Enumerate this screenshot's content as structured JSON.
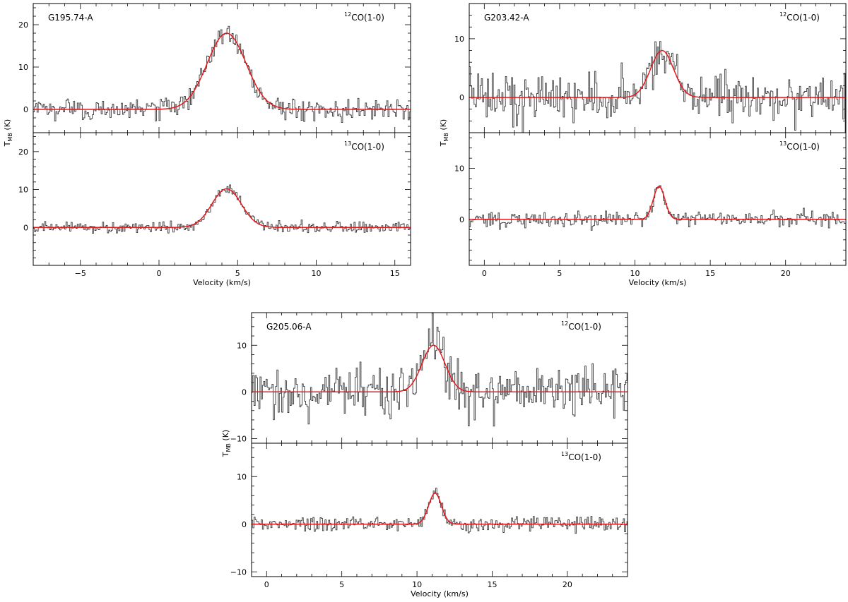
{
  "colors": {
    "spectrum": "#3a3a3a",
    "fit": "#e8191f",
    "frame": "#000000"
  },
  "chart_data": [
    {
      "type": "line",
      "source": "G195.74-A",
      "xlabel": "Velocity (km/s)",
      "ylabel": "TMB (K)",
      "xlim": [
        -8,
        16
      ],
      "xticks": [
        -5,
        0,
        5,
        10,
        15
      ],
      "panels": [
        {
          "name": "12CO",
          "label": "12CO(1-0)",
          "label_sup": "12",
          "label_main": "CO(1-0)",
          "ylim": [
            -5.5,
            25
          ],
          "yticks": [
            0,
            10,
            20
          ],
          "fit": {
            "amplitude": 18.0,
            "center": 4.3,
            "fwhm": 2.9
          },
          "noise_rms": 1.2,
          "channel_width": 0.08
        },
        {
          "name": "13CO",
          "label": "13CO(1-0)",
          "label_sup": "13",
          "label_main": "CO(1-0)",
          "ylim": [
            -10,
            25
          ],
          "yticks": [
            0,
            10,
            20
          ],
          "fit": {
            "amplitude": 10.2,
            "center": 4.3,
            "fwhm": 2.2
          },
          "noise_rms": 0.7,
          "channel_width": 0.08
        }
      ]
    },
    {
      "type": "line",
      "source": "G203.42-A",
      "xlabel": "Velocity (km/s)",
      "ylabel": "TMB (K)",
      "xlim": [
        -1,
        24
      ],
      "xticks": [
        0,
        5,
        10,
        15,
        20
      ],
      "panels": [
        {
          "name": "12CO",
          "label": "12CO(1-0)",
          "label_sup": "12",
          "label_main": "CO(1-0)",
          "ylim": [
            -6,
            16
          ],
          "yticks": [
            0,
            10
          ],
          "fit": {
            "amplitude": 8.0,
            "center": 11.8,
            "fwhm": 1.8
          },
          "noise_rms": 2.0,
          "channel_width": 0.08
        },
        {
          "name": "13CO",
          "label": "13CO(1-0)",
          "label_sup": "13",
          "label_main": "CO(1-0)",
          "ylim": [
            -9,
            17
          ],
          "yticks": [
            0,
            10
          ],
          "fit": {
            "amplitude": 6.5,
            "center": 11.6,
            "fwhm": 0.9
          },
          "noise_rms": 0.7,
          "channel_width": 0.08
        }
      ]
    },
    {
      "type": "line",
      "source": "G205.06-A",
      "xlabel": "Velocity (km/s)",
      "ylabel": "TMB (K)",
      "xlim": [
        -1,
        24
      ],
      "xticks": [
        0,
        5,
        10,
        15,
        20
      ],
      "panels": [
        {
          "name": "12CO",
          "label": "12CO(1-0)",
          "label_sup": "12",
          "label_main": "CO(1-0)",
          "ylim": [
            -11,
            17
          ],
          "yticks": [
            -10,
            0,
            10
          ],
          "fit": {
            "amplitude": 10.0,
            "center": 11.1,
            "fwhm": 1.8
          },
          "noise_rms": 2.6,
          "channel_width": 0.08
        },
        {
          "name": "13CO",
          "label": "13CO(1-0)",
          "label_sup": "13",
          "label_main": "CO(1-0)",
          "ylim": [
            -11,
            17
          ],
          "yticks": [
            -10,
            0,
            10
          ],
          "fit": {
            "amplitude": 6.5,
            "center": 11.2,
            "fwhm": 1.0
          },
          "noise_rms": 0.8,
          "channel_width": 0.08
        }
      ]
    }
  ]
}
